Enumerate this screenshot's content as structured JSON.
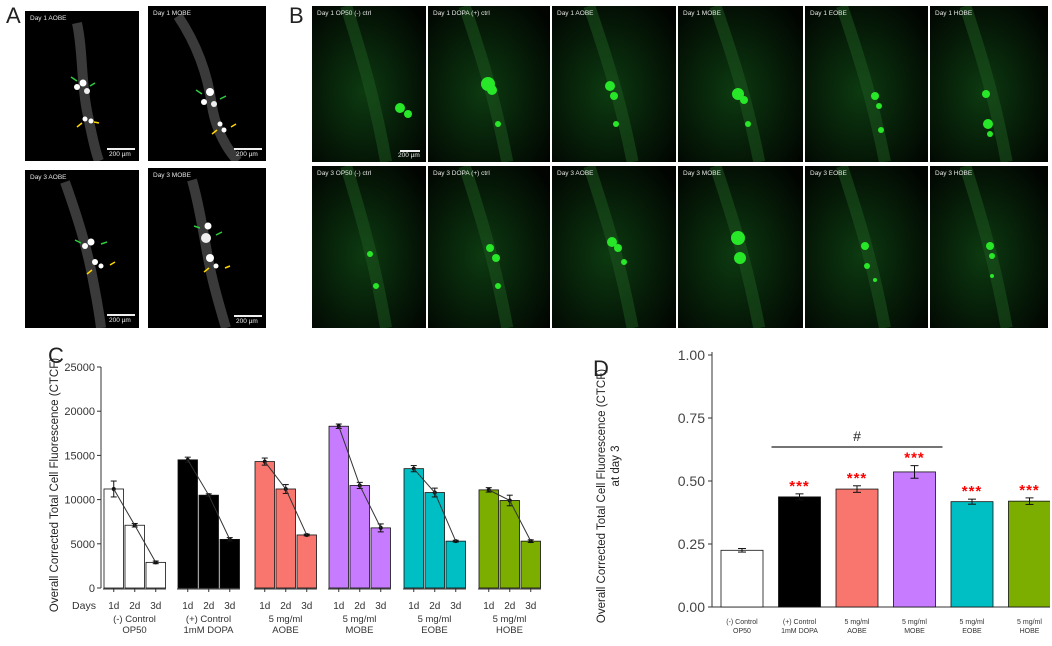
{
  "panels": {
    "a": {
      "letter": "A",
      "images": [
        {
          "label": "Day 1 AOBE",
          "scale_bar": "200 µm"
        },
        {
          "label": "Day 1 MOBE",
          "scale_bar": "200 µm"
        },
        {
          "label": "Day 3 AOBE",
          "scale_bar": "200 µm"
        },
        {
          "label": "Day 3 MOBE",
          "scale_bar": "200 µm"
        }
      ]
    },
    "b": {
      "letter": "B",
      "images": [
        {
          "label": "Day 1 OP50 (-) ctrl",
          "scale_bar": "200 µm"
        },
        {
          "label": "Day 1 DOPA (+) ctrl",
          "scale_bar": ""
        },
        {
          "label": "Day 1 AOBE",
          "scale_bar": ""
        },
        {
          "label": "Day 1 MOBE",
          "scale_bar": ""
        },
        {
          "label": "Day 1 EOBE",
          "scale_bar": ""
        },
        {
          "label": "Day 1 HOBE",
          "scale_bar": ""
        },
        {
          "label": "Day 3 OP50 (-) ctrl",
          "scale_bar": ""
        },
        {
          "label": "Day 3 DOPA (+) ctrl",
          "scale_bar": ""
        },
        {
          "label": "Day 3 AOBE",
          "scale_bar": ""
        },
        {
          "label": "Day 3 MOBE",
          "scale_bar": ""
        },
        {
          "label": "Day 3 EOBE",
          "scale_bar": ""
        },
        {
          "label": "Day 3 HOBE",
          "scale_bar": ""
        }
      ]
    },
    "c": {
      "letter": "C"
    },
    "d": {
      "letter": "D"
    }
  },
  "colors": {
    "neg_control": "#ffffff",
    "pos_control": "#000000",
    "aobe": "#f8766d",
    "mobe": "#c77cff",
    "eobe": "#00bfc4",
    "hobe": "#7cae00",
    "significance": "#ff0000",
    "micro_green": "#28e628"
  },
  "chart_data": [
    {
      "type": "bar",
      "title": "",
      "ylabel": "Overall Corrected Total Cell Fluorescence (CTCF)",
      "xlabel": "",
      "x_prefix": "Days",
      "ylim": [
        0,
        25000
      ],
      "yticks": [
        0,
        5000,
        10000,
        15000,
        20000,
        25000
      ],
      "days": [
        "1d",
        "2d",
        "3d"
      ],
      "groups": [
        {
          "name": "(-) Control\nOP50",
          "color": "#ffffff",
          "values": [
            11200,
            7100,
            2900
          ],
          "errors": [
            900,
            200,
            150
          ]
        },
        {
          "name": "(+) Control\n1mM DOPA",
          "color": "#000000",
          "values": [
            14500,
            10500,
            5500
          ],
          "errors": [
            300,
            150,
            200
          ]
        },
        {
          "name": "5 mg/ml\nAOBE",
          "color": "#f8766d",
          "values": [
            14300,
            11200,
            6000
          ],
          "errors": [
            400,
            500,
            100
          ]
        },
        {
          "name": "5 mg/ml\nMOBE",
          "color": "#c77cff",
          "values": [
            18300,
            11600,
            6800
          ],
          "errors": [
            250,
            350,
            450
          ]
        },
        {
          "name": "5 mg/ml\nEOBE",
          "color": "#00bfc4",
          "values": [
            13500,
            10800,
            5300
          ],
          "errors": [
            350,
            500,
            100
          ]
        },
        {
          "name": "5 mg/ml\nHOBE",
          "color": "#7cae00",
          "values": [
            11100,
            9900,
            5300
          ],
          "errors": [
            250,
            600,
            150
          ]
        }
      ]
    },
    {
      "type": "bar",
      "title": "",
      "ylabel": "Overall Corrected Total Cell Fluorescence (CTCF)\nat day  3",
      "xlabel": "",
      "ylim": [
        0,
        1.0
      ],
      "yticks": [
        "0.00",
        "0.25",
        "0.50",
        "0.75",
        "1.00"
      ],
      "categories": [
        "(-) Control\nOP50",
        "(+) Control\n1mM DOPA",
        "5 mg/ml\nAOBE",
        "5 mg/ml\nMOBE",
        "5 mg/ml\nEOBE",
        "5 mg/ml\nHOBE"
      ],
      "values": [
        0.225,
        0.437,
        0.468,
        0.536,
        0.418,
        0.42
      ],
      "errors": [
        0.007,
        0.012,
        0.013,
        0.025,
        0.01,
        0.013
      ],
      "colors": [
        "#ffffff",
        "#000000",
        "#f8766d",
        "#c77cff",
        "#00bfc4",
        "#7cae00"
      ],
      "significance": [
        "",
        "***",
        "***",
        "***",
        "***",
        "***"
      ],
      "comparison": {
        "from": 1,
        "to": 3,
        "label": "#"
      }
    }
  ]
}
